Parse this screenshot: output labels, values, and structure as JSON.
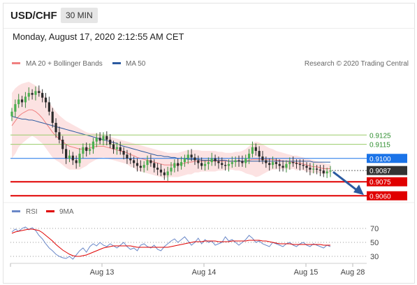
{
  "header": {
    "pair": "USD/CHF",
    "timeframe": "30 MIN"
  },
  "timestamp": "Monday, August 17, 2020 2:12:55 AM CET",
  "legend": {
    "ma_bb": "MA 20 + Bollinger Bands",
    "ma50": "MA 50",
    "credit": "Research © 2020 Trading Central"
  },
  "rsi_legend": {
    "rsi": "RSI",
    "ma9": "9MA"
  },
  "colors": {
    "ma_bb": "#f08080",
    "ma50": "#2b5aa0",
    "rsi": "#6a88c8",
    "ma9": "#e00000",
    "resistance": "#9acb6a",
    "pivot": "#1a73e8",
    "support": "#e00000",
    "current": "#333333"
  },
  "chart_data": [
    {
      "type": "candlestick",
      "ylim": [
        0.9052,
        0.9185
      ],
      "xticks": [
        "Aug 13",
        "Aug 14",
        "Aug 15",
        "Aug 28"
      ],
      "levels": [
        {
          "value": 0.9125,
          "label": "0.9125",
          "kind": "resistance"
        },
        {
          "value": 0.9115,
          "label": "0.9115",
          "kind": "resistance"
        },
        {
          "value": 0.91,
          "label": "0.9100",
          "kind": "pivot"
        },
        {
          "value": 0.9087,
          "label": "0.9087",
          "kind": "current"
        },
        {
          "value": 0.9075,
          "label": "0.9075",
          "kind": "support"
        },
        {
          "value": 0.906,
          "label": "0.9060",
          "kind": "support"
        }
      ],
      "close": [
        0.915,
        0.9158,
        0.9163,
        0.916,
        0.9166,
        0.917,
        0.9168,
        0.9172,
        0.917,
        0.9165,
        0.916,
        0.915,
        0.9138,
        0.9128,
        0.912,
        0.911,
        0.91,
        0.9103,
        0.9098,
        0.9095,
        0.9105,
        0.9112,
        0.9108,
        0.911,
        0.9118,
        0.9122,
        0.9119,
        0.9124,
        0.912,
        0.9115,
        0.911,
        0.9112,
        0.9108,
        0.9104,
        0.91,
        0.9098,
        0.9095,
        0.9092,
        0.909,
        0.9093,
        0.9098,
        0.9095,
        0.909,
        0.9088,
        0.9085,
        0.9082,
        0.9086,
        0.909,
        0.9095,
        0.9092,
        0.9096,
        0.91,
        0.9104,
        0.9101,
        0.9098,
        0.9095,
        0.9092,
        0.9094,
        0.9096,
        0.91,
        0.9097,
        0.9095,
        0.9093,
        0.9092,
        0.9094,
        0.9096,
        0.9098,
        0.9097,
        0.9095,
        0.91,
        0.9105,
        0.9112,
        0.9108,
        0.9102,
        0.9098,
        0.9095,
        0.9093,
        0.9096,
        0.9094,
        0.9092,
        0.909,
        0.9094,
        0.9096,
        0.9095,
        0.9094,
        0.9093,
        0.9092,
        0.909,
        0.9088,
        0.9089,
        0.9088,
        0.9087,
        0.9084,
        0.9086,
        0.9087
      ],
      "ma20": [
        0.9135,
        0.914,
        0.9145,
        0.9148,
        0.915,
        0.9152,
        0.9152,
        0.915,
        0.9147,
        0.9143,
        0.9138,
        0.9133,
        0.9128,
        0.9124,
        0.9121,
        0.9118,
        0.9115,
        0.9113,
        0.9112,
        0.9111,
        0.911,
        0.911,
        0.911,
        0.9111,
        0.9112,
        0.9113,
        0.9113,
        0.9113,
        0.9112,
        0.9111,
        0.911,
        0.9109,
        0.9108,
        0.9107,
        0.9106,
        0.9104,
        0.9103,
        0.9101,
        0.91,
        0.9099,
        0.9098,
        0.9097,
        0.9096,
        0.9095,
        0.9094,
        0.9093,
        0.9093,
        0.9093,
        0.9093,
        0.9093,
        0.9094,
        0.9095,
        0.9096,
        0.9096,
        0.9097,
        0.9097,
        0.9097,
        0.9097,
        0.9097,
        0.9097,
        0.9097,
        0.9097,
        0.9097,
        0.9097,
        0.9097,
        0.9097,
        0.9097,
        0.9097,
        0.9097,
        0.9097,
        0.9098,
        0.9099,
        0.9099,
        0.9099,
        0.9099,
        0.9099,
        0.9099,
        0.9099,
        0.9098,
        0.9098,
        0.9097,
        0.9097,
        0.9096,
        0.9096,
        0.9095,
        0.9095,
        0.9094,
        0.9093,
        0.9092,
        0.9091,
        0.9091,
        0.909,
        0.9089,
        0.9089,
        0.9089
      ],
      "bb_upper": [
        0.917,
        0.9175,
        0.9178,
        0.918,
        0.9181,
        0.9182,
        0.918,
        0.9178,
        0.9175,
        0.917,
        0.9165,
        0.916,
        0.9155,
        0.915,
        0.9146,
        0.9143,
        0.914,
        0.9138,
        0.9136,
        0.9134,
        0.9132,
        0.913,
        0.9128,
        0.9127,
        0.9127,
        0.9127,
        0.9126,
        0.9125,
        0.9124,
        0.9123,
        0.9122,
        0.9121,
        0.912,
        0.9119,
        0.9118,
        0.9117,
        0.9116,
        0.9115,
        0.9114,
        0.9113,
        0.9112,
        0.9111,
        0.911,
        0.9109,
        0.9108,
        0.9107,
        0.9106,
        0.9106,
        0.9106,
        0.9106,
        0.9107,
        0.9108,
        0.9109,
        0.9109,
        0.9109,
        0.9109,
        0.9108,
        0.9108,
        0.9108,
        0.9108,
        0.9108,
        0.9107,
        0.9107,
        0.9106,
        0.9106,
        0.9106,
        0.9107,
        0.9107,
        0.9108,
        0.911,
        0.9113,
        0.9116,
        0.9118,
        0.9117,
        0.9115,
        0.9113,
        0.9111,
        0.911,
        0.9108,
        0.9107,
        0.9106,
        0.9105,
        0.9104,
        0.9103,
        0.9103,
        0.9102,
        0.9101,
        0.91,
        0.9099,
        0.9098,
        0.9097,
        0.9096,
        0.9095,
        0.9094,
        0.9094
      ],
      "bb_lower": [
        0.91,
        0.9105,
        0.9112,
        0.9116,
        0.9119,
        0.9122,
        0.9124,
        0.9122,
        0.9119,
        0.9116,
        0.9111,
        0.9106,
        0.9101,
        0.9098,
        0.9096,
        0.9093,
        0.909,
        0.9088,
        0.9088,
        0.9088,
        0.9088,
        0.909,
        0.9092,
        0.9095,
        0.9097,
        0.9099,
        0.91,
        0.9101,
        0.91,
        0.9099,
        0.9098,
        0.9097,
        0.9096,
        0.9095,
        0.9094,
        0.9091,
        0.909,
        0.9087,
        0.9086,
        0.9085,
        0.9084,
        0.9083,
        0.9082,
        0.9081,
        0.908,
        0.9079,
        0.908,
        0.908,
        0.908,
        0.908,
        0.9081,
        0.9082,
        0.9083,
        0.9083,
        0.9085,
        0.9085,
        0.9086,
        0.9086,
        0.9086,
        0.9086,
        0.9086,
        0.9087,
        0.9087,
        0.9088,
        0.9088,
        0.9088,
        0.9087,
        0.9087,
        0.9086,
        0.9084,
        0.9083,
        0.9082,
        0.908,
        0.9081,
        0.9083,
        0.9085,
        0.9087,
        0.9088,
        0.9088,
        0.9089,
        0.9088,
        0.9089,
        0.9088,
        0.9089,
        0.9087,
        0.9088,
        0.9087,
        0.9086,
        0.9085,
        0.9084,
        0.9085,
        0.9084,
        0.9083,
        0.9084,
        0.9084
      ],
      "ma50": [
        0.9145,
        0.9144,
        0.9143,
        0.9142,
        0.9142,
        0.9141,
        0.9141,
        0.914,
        0.9139,
        0.9138,
        0.9137,
        0.9136,
        0.9135,
        0.9134,
        0.9133,
        0.9132,
        0.9131,
        0.913,
        0.9129,
        0.9128,
        0.9127,
        0.9126,
        0.9125,
        0.9124,
        0.9123,
        0.9122,
        0.9121,
        0.912,
        0.9119,
        0.9118,
        0.9117,
        0.9116,
        0.9114,
        0.9113,
        0.9112,
        0.9111,
        0.911,
        0.9109,
        0.9108,
        0.9107,
        0.9106,
        0.9105,
        0.9104,
        0.9103,
        0.9103,
        0.9102,
        0.9102,
        0.9101,
        0.9101,
        0.91,
        0.91,
        0.91,
        0.9099,
        0.9099,
        0.9099,
        0.9099,
        0.9098,
        0.9098,
        0.9098,
        0.9098,
        0.9098,
        0.9098,
        0.9098,
        0.9098,
        0.9097,
        0.9097,
        0.9097,
        0.9097,
        0.9097,
        0.9097,
        0.9097,
        0.9097,
        0.9097,
        0.9097,
        0.9097,
        0.9097,
        0.9097,
        0.9097,
        0.9097,
        0.9097,
        0.9097,
        0.9097,
        0.9097,
        0.9097,
        0.9097,
        0.9097,
        0.9097,
        0.9097,
        0.9097,
        0.9096,
        0.9096,
        0.9096,
        0.9096,
        0.9096,
        0.9096
      ],
      "forecast": {
        "from": 0.9087,
        "to": 0.9063
      }
    },
    {
      "type": "line",
      "ylim": [
        20,
        80
      ],
      "yticks": [
        70,
        50,
        30
      ],
      "series": [
        {
          "name": "RSI",
          "values": [
            65,
            69,
            66,
            70,
            72,
            68,
            71,
            67,
            60,
            55,
            48,
            42,
            38,
            33,
            30,
            28,
            27,
            30,
            26,
            32,
            38,
            42,
            36,
            44,
            48,
            45,
            50,
            46,
            44,
            48,
            45,
            42,
            46,
            50,
            44,
            40,
            42,
            38,
            46,
            48,
            44,
            42,
            46,
            40,
            38,
            44,
            48,
            52,
            55,
            50,
            54,
            58,
            52,
            46,
            50,
            56,
            48,
            54,
            50,
            52,
            46,
            48,
            50,
            58,
            52,
            54,
            50,
            46,
            50,
            54,
            60,
            56,
            50,
            52,
            48,
            46,
            44,
            50,
            48,
            46,
            44,
            48,
            50,
            46,
            44,
            48,
            50,
            46,
            44,
            48,
            46,
            44,
            42,
            46,
            44
          ]
        },
        {
          "name": "9MA",
          "values": [
            63,
            65,
            66,
            67,
            68,
            69,
            69,
            68,
            67,
            64,
            60,
            56,
            52,
            47,
            43,
            39,
            36,
            33,
            31,
            30,
            30,
            31,
            32,
            34,
            36,
            38,
            40,
            42,
            43,
            44,
            45,
            45,
            45,
            45,
            45,
            45,
            44,
            43,
            43,
            43,
            43,
            43,
            43,
            43,
            43,
            43,
            43,
            44,
            45,
            46,
            47,
            48,
            49,
            50,
            51,
            51,
            51,
            52,
            52,
            52,
            52,
            51,
            51,
            51,
            51,
            52,
            52,
            52,
            52,
            52,
            53,
            53,
            53,
            53,
            52,
            52,
            51,
            50,
            49,
            48,
            48,
            48,
            48,
            47,
            47,
            47,
            47,
            47,
            47,
            47,
            47,
            47,
            46,
            46,
            46
          ]
        }
      ]
    }
  ]
}
